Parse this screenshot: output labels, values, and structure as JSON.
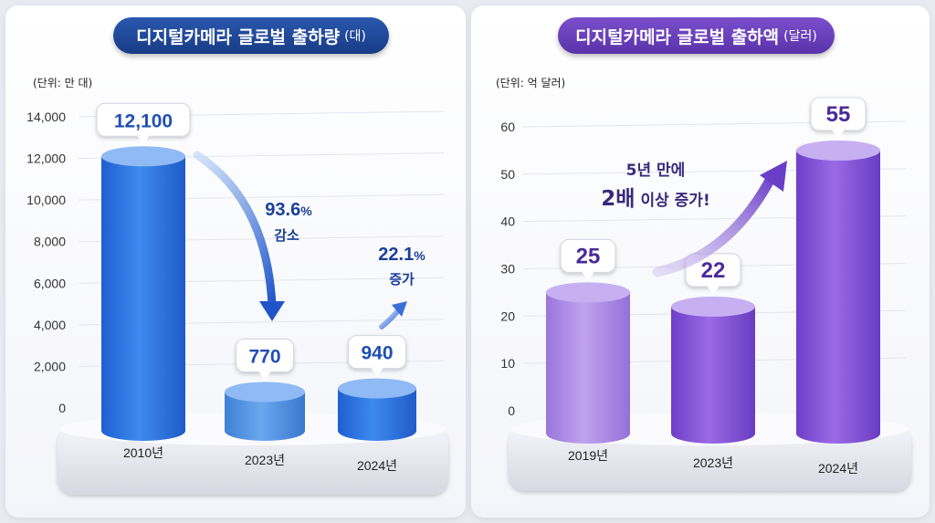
{
  "chart_data": [
    {
      "type": "bar",
      "title": "디지털카메라 글로벌 출하량",
      "title_suffix": "(대)",
      "unit_label": "(단위: 만 대)",
      "categories": [
        "2010년",
        "2023년",
        "2024년"
      ],
      "values": [
        12100,
        770,
        940
      ],
      "value_labels": [
        "12,100",
        "770",
        "940"
      ],
      "ylim": [
        0,
        14000
      ],
      "yticks": [
        "0",
        "2,000",
        "4,000",
        "6,000",
        "8,000",
        "10,000",
        "12,000",
        "14,000"
      ],
      "annotations": [
        {
          "value": "93.6",
          "unit": "%",
          "text": "감소"
        },
        {
          "value": "22.1",
          "unit": "%",
          "text": "증가"
        }
      ],
      "colors": {
        "bar": "#2f7ae5",
        "bar_light": "#4a8fe0",
        "title_bg": "#1e4a9a",
        "annotation": "#1a3f9a"
      },
      "grid": true
    },
    {
      "type": "bar",
      "title": "디지털카메라 글로벌 출하액",
      "title_suffix": "(달러)",
      "unit_label": "(단위: 억 달러)",
      "categories": [
        "2019년",
        "2023년",
        "2024년"
      ],
      "values": [
        25,
        22,
        55
      ],
      "value_labels": [
        "25",
        "22",
        "55"
      ],
      "ylim": [
        0,
        60
      ],
      "yticks": [
        "0",
        "10",
        "20",
        "30",
        "40",
        "50",
        "60"
      ],
      "annotations": [
        {
          "line1": "5년 만에",
          "strong": "2배",
          "rest": "이상 증가!"
        }
      ],
      "colors": {
        "bar": "#8b5ad8",
        "bar_light": "#a985e3",
        "title_bg": "#6a3fbf",
        "annotation": "#3a2a7a"
      },
      "grid": true
    }
  ]
}
